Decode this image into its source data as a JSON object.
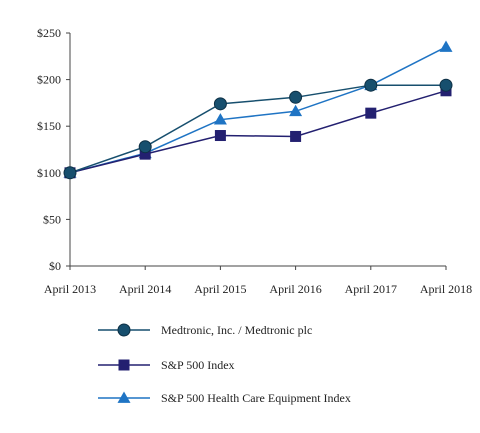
{
  "chart_data": {
    "type": "line",
    "title": "",
    "xlabel": "",
    "ylabel": "",
    "categories": [
      "April 2013",
      "April 2014",
      "April 2015",
      "April 2016",
      "April 2017",
      "April 2018"
    ],
    "y_ticks": [
      "$0",
      "$50",
      "$100",
      "$150",
      "$200",
      "$250"
    ],
    "ylim": [
      0,
      250
    ],
    "grid": false,
    "legend_position": "bottom",
    "series": [
      {
        "name": "Medtronic, Inc. / Medtronic plc",
        "values": [
          100,
          128,
          174,
          181,
          194,
          194
        ],
        "color": "#174f6e",
        "marker": "circle"
      },
      {
        "name": "S&P 500 Index",
        "values": [
          100,
          120,
          140,
          139,
          164,
          188
        ],
        "color": "#232070",
        "marker": "square"
      },
      {
        "name": "S&P 500 Health Care Equipment Index",
        "values": [
          100,
          121,
          157,
          166,
          194,
          235
        ],
        "color": "#1f74c4",
        "marker": "triangle"
      }
    ]
  }
}
